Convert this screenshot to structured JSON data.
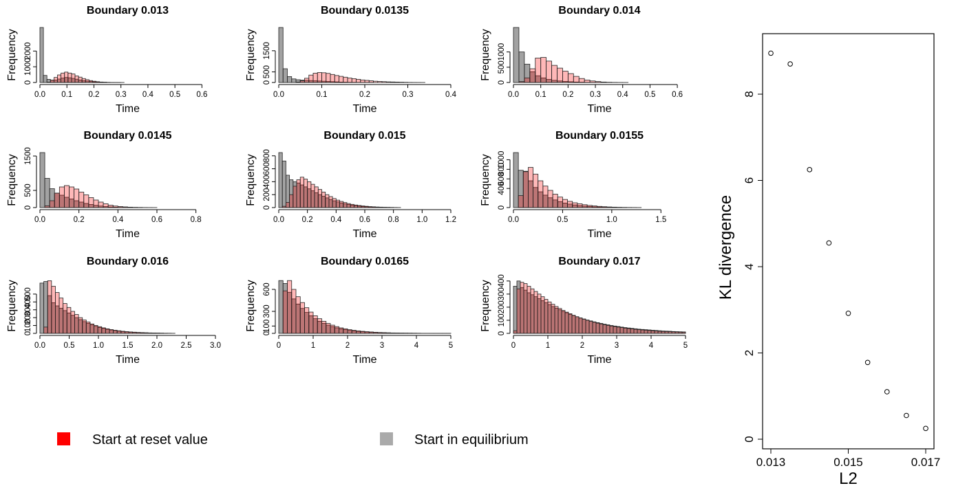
{
  "colors": {
    "reset": "#ff0000",
    "equilibrium": "#999999",
    "reset_fill": "rgba(255,0,0,0.28)",
    "equilibrium_fill": "rgba(85,85,85,0.55)"
  },
  "legend": {
    "items": [
      {
        "label": "Start at reset value",
        "color": "#ff0000"
      },
      {
        "label": "Start in equilibrium",
        "color": "#aaaaaa"
      }
    ]
  },
  "chart_data": [
    {
      "type": "bar",
      "title": "Boundary  0.013",
      "xlabel": "Time",
      "ylabel": "Frequency",
      "xlim": [
        0,
        0.65
      ],
      "ylim": [
        0,
        3500
      ],
      "xticks": [
        0,
        0.1,
        0.2,
        0.3,
        0.4,
        0.5,
        0.6
      ],
      "xtick_labels": [
        "0.0",
        "0.1",
        "0.2",
        "0.3",
        "0.4",
        "0.5",
        "0.6"
      ],
      "yticks": [
        0,
        1000,
        2000
      ],
      "ytick_labels": [
        "0",
        "1000",
        "2000"
      ],
      "bin_width": 0.013,
      "series": [
        {
          "name": "Start at reset value",
          "values": [
            0,
            0,
            20,
            150,
            320,
            480,
            600,
            660,
            600,
            540,
            420,
            340,
            250,
            180,
            120,
            80,
            50,
            30,
            20,
            10,
            5,
            3,
            2,
            1
          ]
        },
        {
          "name": "Start in equilibrium",
          "values": [
            3500,
            450,
            200,
            150,
            160,
            220,
            280,
            320,
            300,
            260,
            210,
            160,
            120,
            90,
            60,
            40,
            25,
            15,
            10,
            5,
            3,
            2,
            1
          ]
        }
      ]
    },
    {
      "type": "bar",
      "title": "Boundary  0.0135",
      "xlabel": "Time",
      "ylabel": "Frequency",
      "xlim": [
        0,
        0.4
      ],
      "ylim": [
        0,
        2600
      ],
      "xticks": [
        0,
        0.1,
        0.2,
        0.3,
        0.4
      ],
      "xtick_labels": [
        "0.0",
        "0.1",
        "0.2",
        "0.3",
        "0.4"
      ],
      "yticks": [
        0,
        500,
        1500
      ],
      "ytick_labels": [
        "0",
        "500",
        "1500"
      ],
      "bin_width": 0.01,
      "series": [
        {
          "name": "Start at reset value",
          "values": [
            0,
            0,
            0,
            0,
            20,
            80,
            200,
            350,
            440,
            470,
            460,
            430,
            380,
            330,
            290,
            250,
            210,
            180,
            150,
            120,
            100,
            80,
            60,
            50,
            40,
            30,
            25,
            20,
            15,
            10,
            5,
            3,
            2,
            1
          ]
        },
        {
          "name": "Start in equilibrium",
          "values": [
            2700,
            650,
            280,
            170,
            130,
            110,
            100,
            90,
            80,
            70,
            60,
            50,
            40,
            30,
            20,
            15,
            10,
            8,
            5,
            3,
            2,
            1
          ]
        }
      ]
    },
    {
      "type": "bar",
      "title": "Boundary  0.014",
      "xlabel": "Time",
      "ylabel": "Frequency",
      "xlim": [
        0,
        0.63
      ],
      "ylim": [
        0,
        1800
      ],
      "xticks": [
        0,
        0.1,
        0.2,
        0.3,
        0.4,
        0.5,
        0.6
      ],
      "xtick_labels": [
        "0.0",
        "0.1",
        "0.2",
        "0.3",
        "0.4",
        "0.5",
        "0.6"
      ],
      "yticks": [
        0,
        500,
        1000
      ],
      "ytick_labels": [
        "0",
        "500",
        "1000"
      ],
      "bin_width": 0.02,
      "series": [
        {
          "name": "Start at reset value",
          "values": [
            0,
            30,
            150,
            450,
            800,
            820,
            700,
            560,
            470,
            370,
            290,
            200,
            130,
            80,
            50,
            30,
            15,
            8,
            4,
            2,
            1
          ]
        },
        {
          "name": "Start in equilibrium",
          "values": [
            1800,
            1000,
            600,
            350,
            220,
            150,
            100,
            70,
            50,
            35,
            25,
            15,
            10,
            5,
            3,
            1
          ]
        }
      ]
    },
    {
      "type": "bar",
      "title": "Boundary  0.0145",
      "xlabel": "Time",
      "ylabel": "Frequency",
      "xlim": [
        0,
        0.9
      ],
      "ylim": [
        0,
        1600
      ],
      "xticks": [
        0,
        0.2,
        0.4,
        0.6,
        0.8
      ],
      "xtick_labels": [
        "0.0",
        "0.2",
        "0.4",
        "0.6",
        "0.8"
      ],
      "yticks": [
        0,
        500,
        1500
      ],
      "ytick_labels": [
        "0",
        "500",
        "1500"
      ],
      "bin_width": 0.025,
      "series": [
        {
          "name": "Start at reset value",
          "values": [
            0,
            50,
            200,
            420,
            600,
            640,
            600,
            540,
            450,
            370,
            290,
            220,
            160,
            110,
            70,
            45,
            30,
            20,
            12,
            8,
            5,
            3,
            2,
            1
          ]
        },
        {
          "name": "Start in equilibrium",
          "values": [
            1600,
            850,
            550,
            420,
            360,
            300,
            250,
            200,
            160,
            120,
            90,
            65,
            45,
            30,
            20,
            12,
            8,
            5,
            3,
            2,
            1
          ]
        }
      ]
    },
    {
      "type": "bar",
      "title": "Boundary  0.015",
      "xlabel": "Time",
      "ylabel": "Frequency",
      "xlim": [
        0,
        1.2
      ],
      "ylim": [
        0,
        850
      ],
      "xticks": [
        0,
        0.2,
        0.4,
        0.6,
        0.8,
        1.0,
        1.2
      ],
      "xtick_labels": [
        "0.0",
        "0.2",
        "0.4",
        "0.6",
        "0.8",
        "1.0",
        "1.2"
      ],
      "yticks": [
        0,
        200,
        400,
        600,
        800
      ],
      "ytick_labels": [
        "0",
        "200",
        "400",
        "600",
        "800"
      ],
      "bin_width": 0.025,
      "series": [
        {
          "name": "Start at reset value",
          "values": [
            0,
            20,
            80,
            200,
            330,
            430,
            470,
            440,
            400,
            360,
            320,
            280,
            240,
            200,
            170,
            140,
            115,
            95,
            78,
            62,
            50,
            40,
            32,
            25,
            20,
            15,
            12,
            9,
            7,
            5,
            4,
            3,
            2,
            1
          ]
        },
        {
          "name": "Start in equilibrium",
          "values": [
            850,
            720,
            500,
            430,
            400,
            380,
            350,
            320,
            290,
            260,
            230,
            200,
            175,
            150,
            125,
            105,
            88,
            72,
            58,
            47,
            37,
            29,
            22,
            17,
            13,
            10,
            7,
            5,
            4,
            3,
            2,
            1
          ]
        }
      ]
    },
    {
      "type": "bar",
      "title": "Boundary  0.0155",
      "xlabel": "Time",
      "ylabel": "Frequency",
      "xlim": [
        0,
        1.75
      ],
      "ylim": [
        0,
        1150
      ],
      "xticks": [
        0,
        0.5,
        1.0,
        1.5
      ],
      "xtick_labels": [
        "0.0",
        "0.5",
        "1.0",
        "1.5"
      ],
      "yticks": [
        0,
        400,
        600,
        800,
        1000
      ],
      "ytick_labels": [
        "0",
        "400",
        "600",
        "800",
        "1000"
      ],
      "bin_width": 0.05,
      "series": [
        {
          "name": "Start at reset value",
          "values": [
            0,
            250,
            750,
            840,
            700,
            560,
            450,
            360,
            280,
            220,
            170,
            130,
            100,
            78,
            60,
            45,
            34,
            25,
            18,
            13,
            9,
            6,
            4,
            3,
            2,
            1
          ]
        },
        {
          "name": "Start in equilibrium",
          "values": [
            1150,
            780,
            760,
            560,
            420,
            330,
            260,
            205,
            160,
            125,
            95,
            73,
            55,
            41,
            30,
            22,
            16,
            11,
            8,
            5,
            3,
            2,
            1
          ]
        }
      ]
    },
    {
      "type": "bar",
      "title": "Boundary  0.016",
      "xlabel": "Time",
      "ylabel": "Frequency",
      "xlim": [
        0,
        3.0
      ],
      "ylim": [
        0,
        700
      ],
      "xticks": [
        0,
        0.5,
        1.0,
        1.5,
        2.0,
        2.5,
        3.0
      ],
      "xtick_labels": [
        "0.0",
        "0.5",
        "1.0",
        "1.5",
        "2.0",
        "2.5",
        "3.0"
      ],
      "yticks": [
        0,
        100,
        200,
        300,
        400,
        500
      ],
      "ytick_labels": [
        "0",
        "100",
        "200",
        "300",
        "400",
        "500"
      ],
      "bin_width": 0.066,
      "series": [
        {
          "name": "Start at reset value",
          "values": [
            0,
            80,
            670,
            600,
            520,
            450,
            380,
            330,
            280,
            240,
            200,
            170,
            145,
            120,
            100,
            85,
            70,
            58,
            48,
            40,
            33,
            27,
            22,
            18,
            15,
            12,
            10,
            8,
            6,
            5,
            4,
            3,
            2,
            2,
            1
          ]
        },
        {
          "name": "Start in equilibrium",
          "values": [
            640,
            660,
            480,
            390,
            350,
            320,
            290,
            260,
            230,
            200,
            175,
            150,
            128,
            108,
            90,
            76,
            63,
            52,
            43,
            35,
            29,
            23,
            19,
            15,
            12,
            10,
            8,
            6,
            5,
            4,
            3,
            2,
            1
          ]
        }
      ]
    },
    {
      "type": "bar",
      "title": "Boundary  0.0165",
      "xlabel": "Time",
      "ylabel": "Frequency",
      "xlim": [
        0,
        5
      ],
      "ylim": [
        0,
        750
      ],
      "xticks": [
        0,
        1,
        2,
        3,
        4,
        5
      ],
      "xtick_labels": [
        "0",
        "1",
        "2",
        "3",
        "4",
        "5"
      ],
      "yticks": [
        0,
        100,
        300,
        600
      ],
      "ytick_labels": [
        "0",
        "100",
        "300",
        "600"
      ],
      "bin_width": 0.125,
      "series": [
        {
          "name": "Start at reset value",
          "values": [
            0,
            580,
            720,
            600,
            500,
            420,
            350,
            290,
            240,
            200,
            165,
            135,
            112,
            92,
            75,
            62,
            50,
            41,
            34,
            28,
            23,
            19,
            15,
            12,
            10,
            8,
            6,
            5,
            4,
            3,
            3,
            2,
            2,
            1,
            1,
            1,
            1,
            1,
            1,
            1
          ]
        },
        {
          "name": "Start in equilibrium",
          "values": [
            720,
            680,
            560,
            470,
            400,
            340,
            285,
            240,
            200,
            165,
            136,
            112,
            92,
            75,
            62,
            50,
            41,
            34,
            28,
            23,
            19,
            15,
            12,
            10,
            8,
            6,
            5,
            4,
            3,
            3,
            2,
            2,
            1,
            1,
            1,
            1,
            1,
            1,
            1,
            1
          ]
        }
      ]
    },
    {
      "type": "bar",
      "title": "Boundary  0.017",
      "xlabel": "Time",
      "ylabel": "Frequency",
      "xlim": [
        0,
        5
      ],
      "ylim": [
        0,
        420
      ],
      "xticks": [
        0,
        1,
        2,
        3,
        4,
        5
      ],
      "xtick_labels": [
        "0",
        "1",
        "2",
        "3",
        "4",
        "5"
      ],
      "yticks": [
        0,
        100,
        200,
        300,
        400
      ],
      "ytick_labels": [
        "0",
        "100",
        "200",
        "300",
        "400"
      ],
      "bin_width": 0.1,
      "series": [
        {
          "name": "Start at reset value",
          "values": [
            20,
            340,
            390,
            380,
            360,
            340,
            320,
            300,
            280,
            260,
            240,
            222,
            205,
            190,
            175,
            162,
            150,
            138,
            127,
            117,
            108,
            100,
            92,
            85,
            78,
            72,
            66,
            61,
            56,
            52,
            48,
            44,
            40,
            37,
            34,
            31,
            28,
            26,
            24,
            22,
            20,
            18,
            16,
            15,
            14,
            13,
            12,
            11,
            10,
            9
          ]
        },
        {
          "name": "Start in equilibrium",
          "values": [
            360,
            400,
            350,
            330,
            310,
            295,
            280,
            265,
            250,
            235,
            220,
            205,
            192,
            180,
            168,
            157,
            146,
            136,
            127,
            118,
            110,
            102,
            95,
            88,
            82,
            76,
            70,
            65,
            60,
            56,
            52,
            48,
            44,
            41,
            38,
            35,
            32,
            30,
            28,
            26,
            24,
            22,
            20,
            18,
            17,
            16,
            14,
            13,
            12,
            11
          ]
        }
      ]
    },
    {
      "type": "scatter",
      "xlabel": "L2",
      "ylabel": "KL divergence",
      "xlim": [
        0.01295,
        0.01705
      ],
      "ylim": [
        0,
        9
      ],
      "xticks": [
        0.013,
        0.015,
        0.017
      ],
      "xtick_labels": [
        "0.013",
        "0.015",
        "0.017"
      ],
      "yticks": [
        0,
        2,
        4,
        6,
        8
      ],
      "ytick_labels": [
        "0",
        "2",
        "4",
        "6",
        "8"
      ],
      "x": [
        0.013,
        0.0135,
        0.014,
        0.0145,
        0.015,
        0.0155,
        0.016,
        0.0165,
        0.017
      ],
      "y": [
        8.95,
        8.7,
        6.25,
        4.55,
        2.92,
        1.78,
        1.1,
        0.55,
        0.25
      ]
    }
  ]
}
